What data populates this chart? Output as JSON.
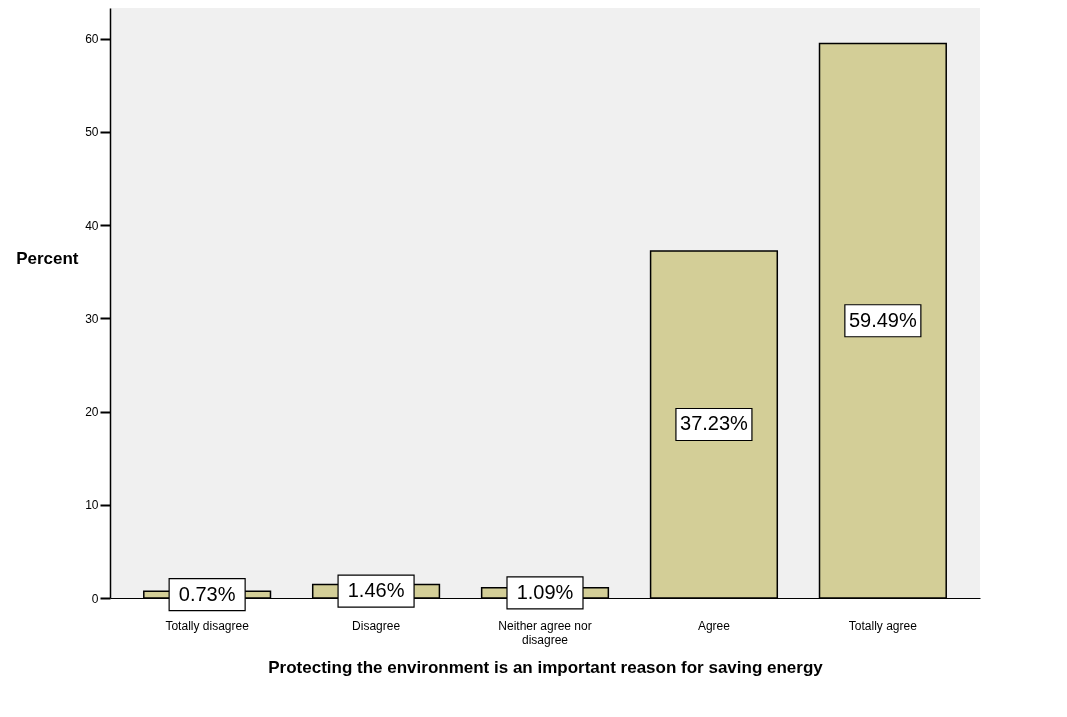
{
  "chart_data": {
    "type": "bar",
    "xlabel": "Protecting the environment is an important reason for saving energy",
    "ylabel": "Percent",
    "categories": [
      "Totally disagree",
      "Disagree",
      "Neither agree nor disagree",
      "Agree",
      "Totally agree"
    ],
    "values": [
      0.73,
      1.46,
      1.09,
      37.23,
      59.49
    ],
    "value_labels": [
      "0.73%",
      "1.46%",
      "1.09%",
      "37.23%",
      "59.49%"
    ],
    "color": "#d3ce97",
    "ylim": [
      0,
      63.3
    ],
    "yticks": [
      0,
      10,
      20,
      30,
      40,
      50,
      60
    ],
    "grid": false
  }
}
